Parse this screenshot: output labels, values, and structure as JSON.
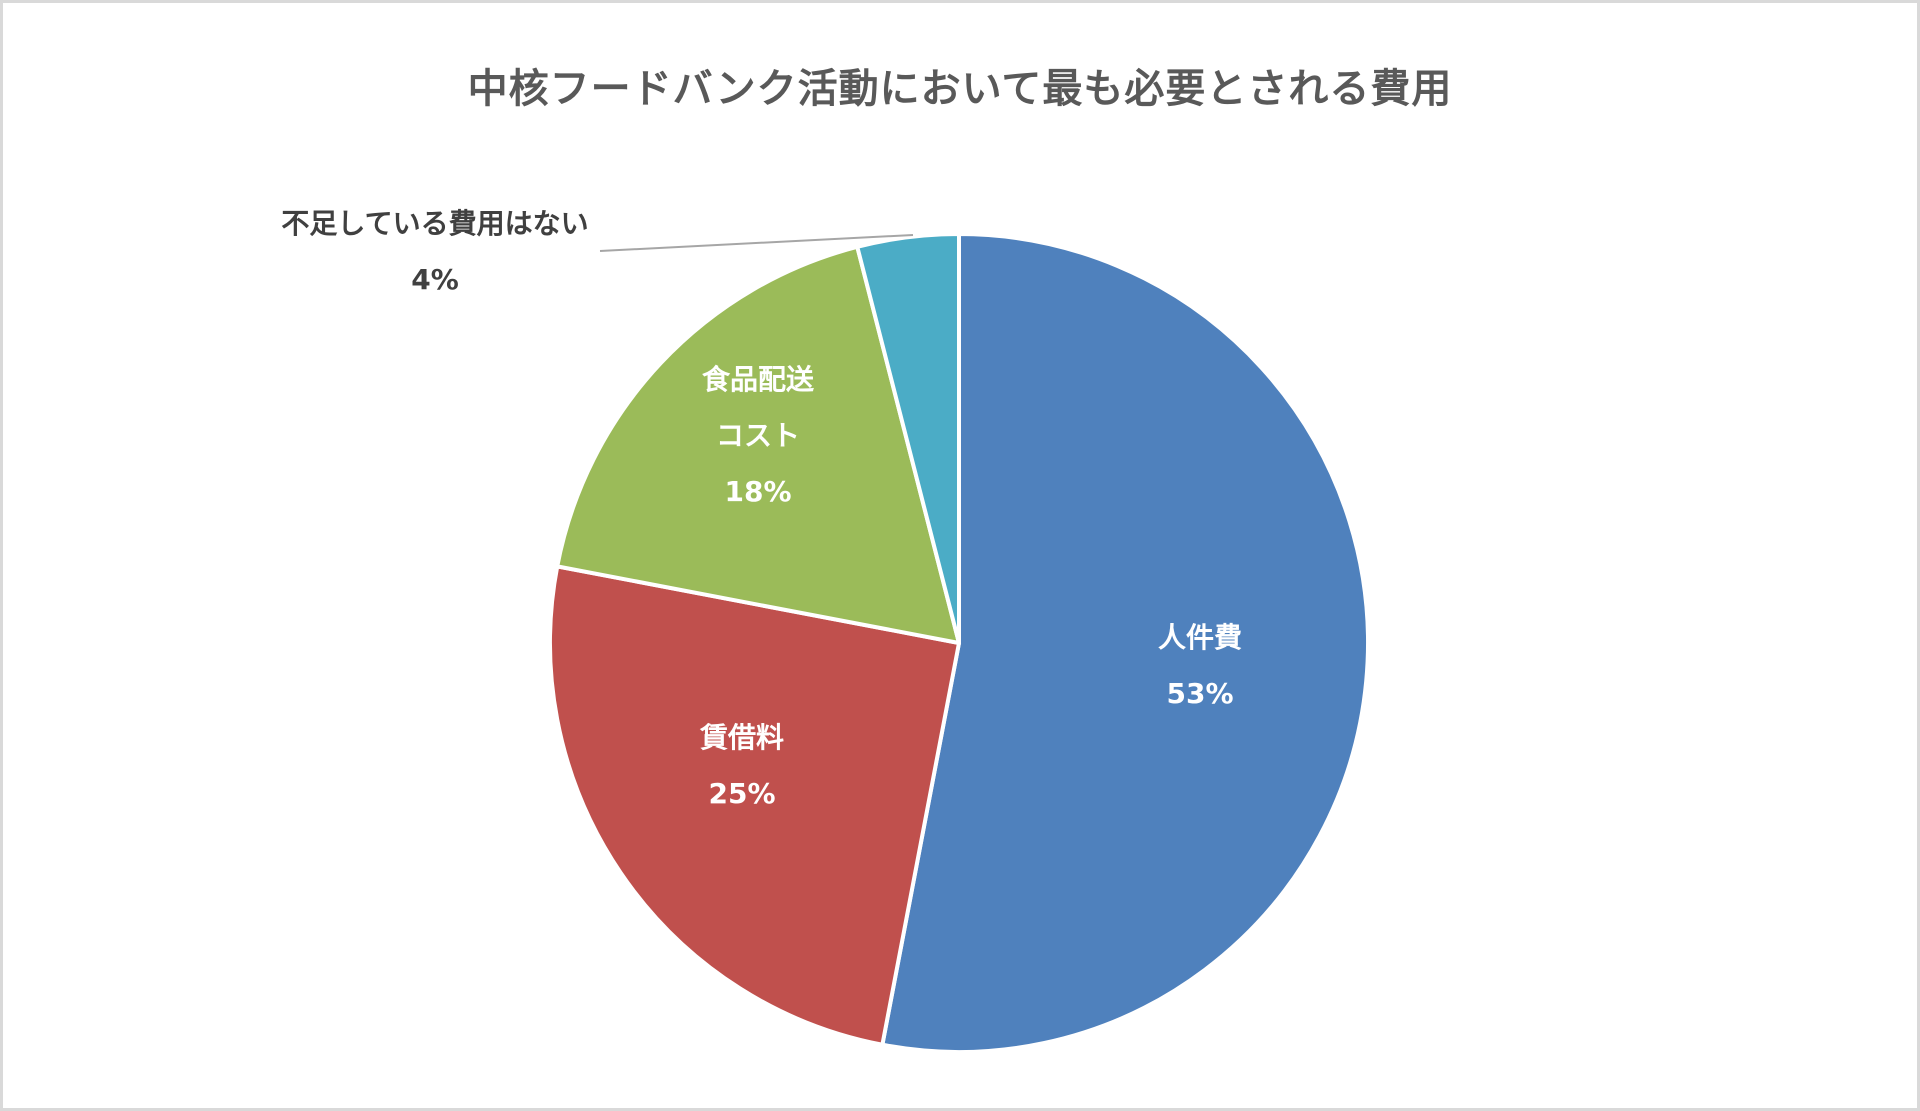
{
  "chart_data": {
    "type": "pie",
    "title": "中核フードバンク活動において最も必要とされる費用",
    "categories": [
      "人件費",
      "賃借料",
      "食品配送コスト",
      "不足している費用はない"
    ],
    "values": [
      53,
      25,
      18,
      4
    ],
    "unit": "%",
    "colors": [
      "#4f81bd",
      "#c0504d",
      "#9bbb59",
      "#4bacc6"
    ],
    "start_angle_deg": 0,
    "direction": "clockwise",
    "legend": "none",
    "data_labels": [
      {
        "name_lines": [
          "人件費"
        ],
        "percent": "53%",
        "position": "inside"
      },
      {
        "name_lines": [
          "賃借料"
        ],
        "percent": "25%",
        "position": "inside"
      },
      {
        "name_lines": [
          "食品配送",
          "コスト"
        ],
        "percent": "18%",
        "position": "inside"
      },
      {
        "name_lines": [
          "不足している費用はない"
        ],
        "percent": "4%",
        "position": "outside",
        "leader_line": true
      }
    ]
  },
  "title": "中核フードバンク活動において最も必要とされる費用",
  "labels": {
    "jinkenhi": {
      "name": "人件費",
      "pct": "53%"
    },
    "chinshakuryo": {
      "name": "賃借料",
      "pct": "25%"
    },
    "haiso": {
      "name1": "食品配送",
      "name2": "コスト",
      "pct": "18%"
    },
    "nashi": {
      "name": "不足している費用はない",
      "pct": "4%"
    }
  }
}
